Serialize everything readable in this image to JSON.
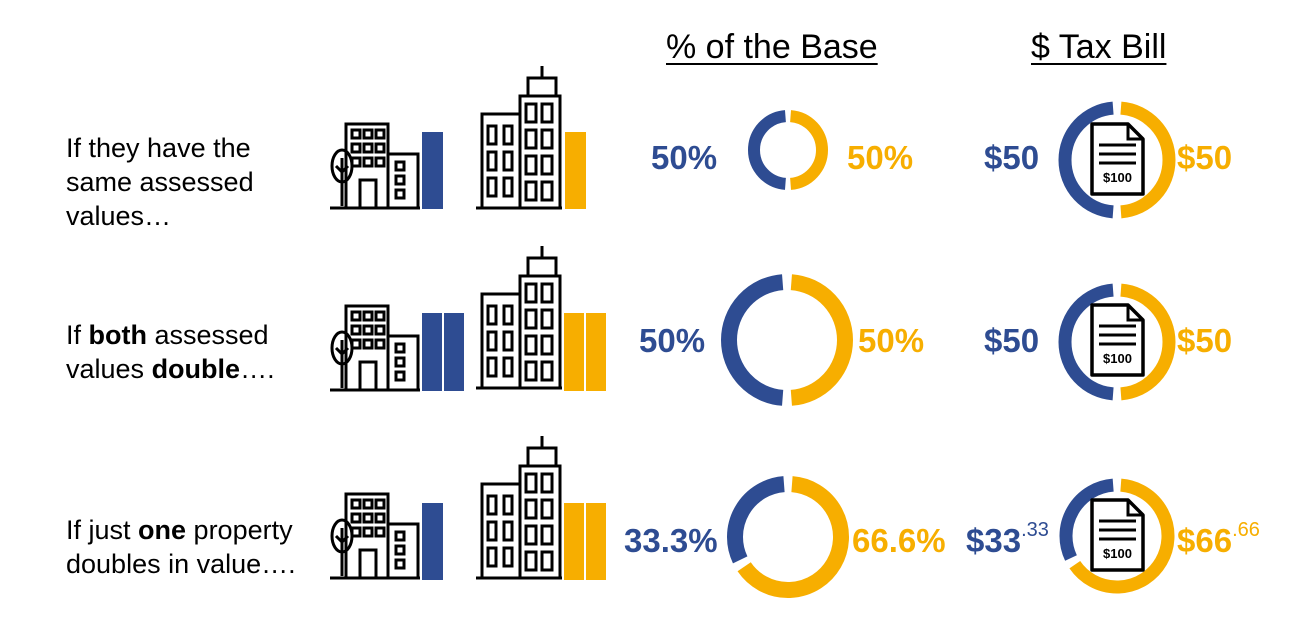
{
  "headers": {
    "base": "% of the Base",
    "tax": "$ Tax Bill"
  },
  "colors": {
    "blue": "#2e4c92",
    "gold": "#f7ae00"
  },
  "icons": {
    "small_building": "small-building-with-tree-icon",
    "tall_building": "tall-building-icon",
    "bill": "tax-bill-document-icon"
  },
  "bill_amount": "$100",
  "rows": [
    {
      "label_lines": [
        "If they have the",
        "same assessed",
        "values…"
      ],
      "pct_left": "50%",
      "pct_right": "50%",
      "share_left": 0.5,
      "tax_left": "$50",
      "tax_left_cents": "",
      "tax_right": "$50",
      "tax_right_cents": ""
    },
    {
      "label_parts": [
        "If ",
        "both",
        " assessed",
        "values ",
        "double",
        "…."
      ],
      "pct_left": "50%",
      "pct_right": "50%",
      "share_left": 0.5,
      "tax_left": "$50",
      "tax_left_cents": "",
      "tax_right": "$50",
      "tax_right_cents": ""
    },
    {
      "label_parts": [
        "If just ",
        "one",
        " property",
        "doubles in value…."
      ],
      "pct_left": "33.3%",
      "pct_right": "66.6%",
      "share_left": 0.333,
      "tax_left": "$33",
      "tax_left_cents": ".33",
      "tax_right": "$66",
      "tax_right_cents": ".66"
    }
  ]
}
